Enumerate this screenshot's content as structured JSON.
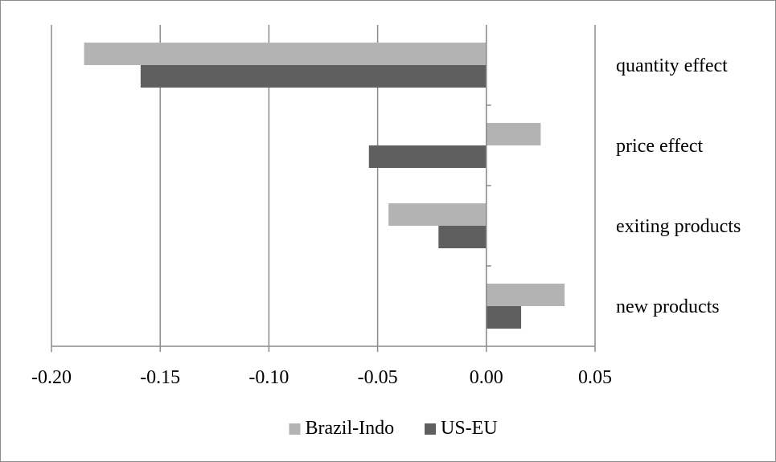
{
  "chart_data": {
    "type": "bar",
    "orientation": "horizontal",
    "categories": [
      "quantity effect",
      "price effect",
      "exiting products",
      "new products"
    ],
    "series": [
      {
        "name": "Brazil-Indo",
        "color": "#b3b3b3",
        "values": [
          -0.185,
          0.025,
          -0.045,
          0.036
        ]
      },
      {
        "name": "US-EU",
        "color": "#5f5f5f",
        "values": [
          -0.159,
          -0.054,
          -0.022,
          0.016
        ]
      }
    ],
    "xlim": [
      -0.2,
      0.05
    ],
    "xticks": [
      "-0.20",
      "-0.15",
      "-0.10",
      "-0.05",
      "0.00",
      "0.05"
    ],
    "xtick_values": [
      -0.2,
      -0.15,
      -0.1,
      -0.05,
      0.0,
      0.05
    ],
    "grid": "vertical gridlines",
    "legend_position": "bottom",
    "title": "",
    "xlabel": "",
    "ylabel": ""
  }
}
